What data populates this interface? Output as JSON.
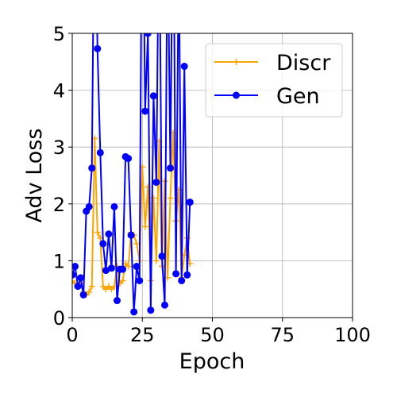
{
  "chart_data": {
    "type": "line",
    "xlabel": "Epoch",
    "ylabel": "Adv Loss",
    "xlim": [
      0,
      100
    ],
    "ylim": [
      0,
      5
    ],
    "xticks": [
      0,
      25,
      50,
      75,
      100
    ],
    "yticks": [
      0,
      1,
      2,
      3,
      4,
      5
    ],
    "grid": true,
    "legend_position": "top-right",
    "series": [
      {
        "name": "Discr",
        "color": "#ffa500",
        "marker": "plus",
        "x": [
          0,
          1,
          2,
          3,
          4,
          5,
          6,
          7,
          8,
          9,
          10,
          11,
          12,
          13,
          14,
          15,
          16,
          17,
          18,
          19,
          20,
          21,
          22,
          23,
          24,
          25,
          26,
          27,
          28,
          29,
          30,
          31,
          32,
          33,
          34,
          35,
          36,
          37,
          38,
          39,
          40,
          41,
          42
        ],
        "y": [
          0.65,
          0.6,
          0.55,
          0.6,
          0.45,
          0.4,
          0.45,
          0.55,
          3.15,
          1.5,
          1.4,
          0.55,
          0.5,
          0.55,
          0.5,
          0.55,
          0.9,
          0.6,
          0.65,
          0.95,
          0.9,
          1.5,
          1.45,
          1.3,
          1.0,
          2.65,
          1.6,
          2.3,
          0.65,
          2.1,
          1.0,
          3.1,
          0.9,
          2.4,
          0.7,
          2.1,
          3.25,
          1.7,
          2.25,
          0.7,
          1.1,
          1.4,
          0.95
        ]
      },
      {
        "name": "Gen",
        "color": "#0000ff",
        "marker": "circle",
        "x": [
          0,
          1,
          2,
          3,
          4,
          5,
          6,
          7,
          8,
          9,
          10,
          11,
          12,
          13,
          14,
          15,
          16,
          17,
          18,
          19,
          20,
          21,
          22,
          23,
          24,
          25,
          26,
          27,
          28,
          29,
          30,
          31,
          32,
          33,
          34,
          35,
          36,
          37,
          38,
          39,
          40,
          41,
          42
        ],
        "y": [
          0.75,
          0.9,
          0.55,
          0.7,
          0.4,
          1.87,
          1.95,
          2.63,
          8.0,
          4.73,
          2.9,
          1.3,
          0.83,
          1.47,
          0.87,
          1.95,
          0.3,
          0.85,
          0.85,
          2.83,
          2.8,
          1.45,
          0.1,
          0.9,
          0.65,
          8.5,
          3.63,
          5.0,
          0.13,
          3.9,
          2.38,
          7.5,
          1.08,
          0.22,
          7.0,
          2.63,
          8.0,
          0.77,
          6.5,
          0.65,
          4.42,
          0.75,
          2.03
        ]
      }
    ]
  }
}
